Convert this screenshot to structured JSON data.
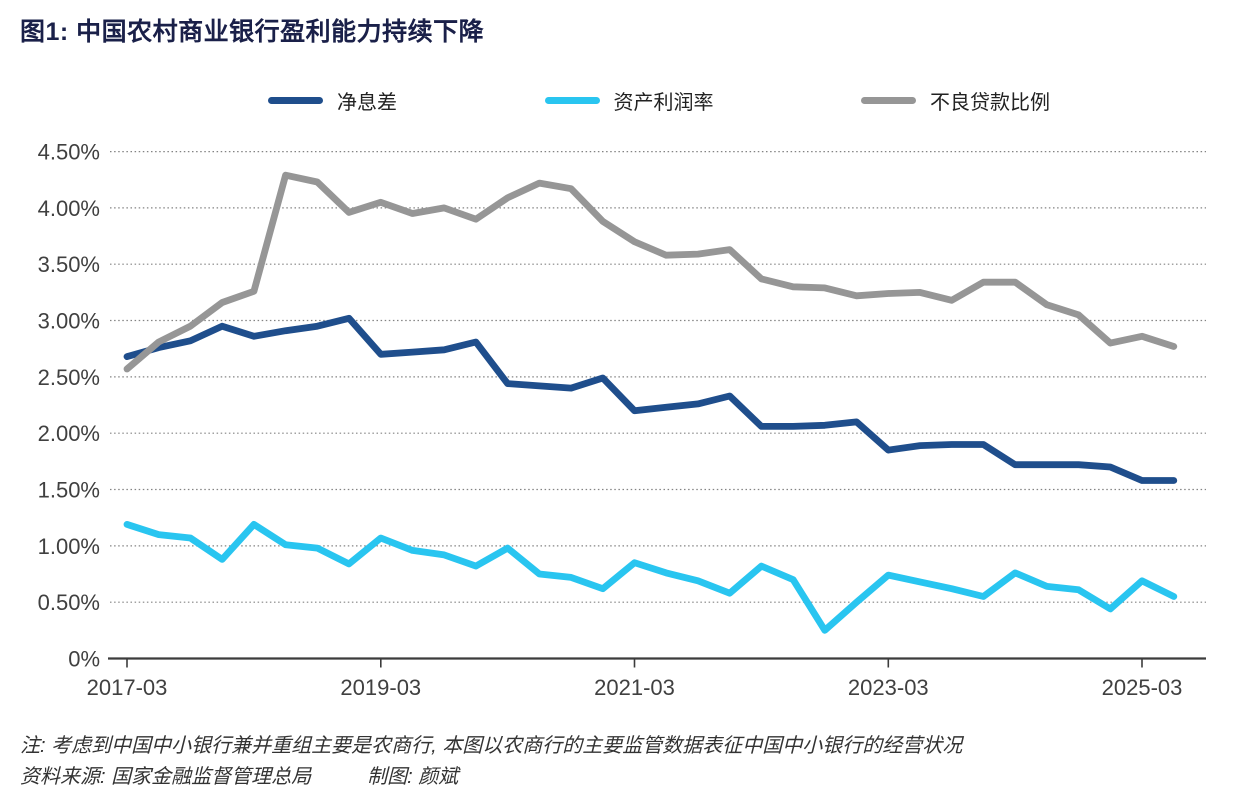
{
  "title": "图1: 中国农村商业银行盈利能力持续下降",
  "colors": {
    "net_interest_margin": "#1F4E8C",
    "roa": "#29C5F0",
    "npl_ratio": "#969696",
    "title_text": "#1A2049",
    "axis_text": "#404040",
    "axis_line": "#3C3C3C",
    "gridline": "#838383"
  },
  "legend": {
    "items": [
      {
        "label": "净息差"
      },
      {
        "label": "资产利润率"
      },
      {
        "label": "不良贷款比例"
      }
    ]
  },
  "chart_data": {
    "type": "line",
    "title": "图1: 中国农村商业银行盈利能力持续下降",
    "x_unit": "quarter",
    "grid": "horizontal-dotted",
    "legend_position": "top",
    "ylim": [
      0,
      4.5
    ],
    "draw_order": [
      0,
      2,
      1
    ],
    "categories": [
      "2017-03",
      "2017-06",
      "2017-09",
      "2017-12",
      "2018-03",
      "2018-06",
      "2018-09",
      "2018-12",
      "2019-03",
      "2019-06",
      "2019-09",
      "2019-12",
      "2020-03",
      "2020-06",
      "2020-09",
      "2020-12",
      "2021-03",
      "2021-06",
      "2021-09",
      "2021-12",
      "2022-03",
      "2022-06",
      "2022-09",
      "2022-12",
      "2023-03",
      "2023-06",
      "2023-09",
      "2023-12",
      "2024-03",
      "2024-06",
      "2024-09",
      "2024-12",
      "2025-03",
      "2025-06"
    ],
    "x_ticks": [
      {
        "index": 0,
        "label": "2017-03"
      },
      {
        "index": 8,
        "label": "2019-03"
      },
      {
        "index": 16,
        "label": "2021-03"
      },
      {
        "index": 24,
        "label": "2023-03"
      },
      {
        "index": 32,
        "label": "2025-03"
      }
    ],
    "y_ticks": [
      {
        "value": 4.5,
        "label": "4.50%"
      },
      {
        "value": 4.0,
        "label": "4.00%"
      },
      {
        "value": 3.5,
        "label": "3.50%"
      },
      {
        "value": 3.0,
        "label": "3.00%"
      },
      {
        "value": 2.5,
        "label": "2.50%"
      },
      {
        "value": 2.0,
        "label": "2.00%"
      },
      {
        "value": 1.5,
        "label": "1.50%"
      },
      {
        "value": 1.0,
        "label": "1.00%"
      },
      {
        "value": 0.5,
        "label": "0.50%"
      },
      {
        "value": 0.0,
        "label": "0%"
      }
    ],
    "series": [
      {
        "name": "净息差",
        "color": "#1F4E8C",
        "values": [
          2.68,
          2.76,
          2.82,
          2.95,
          2.86,
          2.91,
          2.95,
          3.02,
          2.7,
          2.72,
          2.74,
          2.81,
          2.44,
          2.42,
          2.4,
          2.49,
          2.2,
          2.23,
          2.26,
          2.33,
          2.06,
          2.06,
          2.07,
          2.1,
          1.85,
          1.89,
          1.9,
          1.9,
          1.72,
          1.72,
          1.72,
          1.7,
          1.58,
          1.58
        ]
      },
      {
        "name": "资产利润率",
        "color": "#29C5F0",
        "values": [
          1.19,
          1.1,
          1.07,
          0.88,
          1.19,
          1.01,
          0.98,
          0.84,
          1.07,
          0.96,
          0.92,
          0.82,
          0.98,
          0.75,
          0.72,
          0.62,
          0.85,
          0.76,
          0.69,
          0.58,
          0.82,
          0.7,
          0.25,
          0.5,
          0.74,
          0.68,
          0.62,
          0.55,
          0.76,
          0.64,
          0.61,
          0.44,
          0.69,
          0.55
        ]
      },
      {
        "name": "不良贷款比例",
        "color": "#969696",
        "values": [
          2.57,
          2.81,
          2.95,
          3.16,
          3.26,
          4.29,
          4.23,
          3.96,
          4.05,
          3.95,
          4.0,
          3.9,
          4.09,
          4.22,
          4.17,
          3.88,
          3.7,
          3.58,
          3.59,
          3.63,
          3.37,
          3.3,
          3.29,
          3.22,
          3.24,
          3.25,
          3.18,
          3.34,
          3.34,
          3.14,
          3.05,
          2.8,
          2.86,
          2.77
        ]
      }
    ]
  },
  "notes": {
    "line1": "注: 考虑到中国中小银行兼并重组主要是农商行, 本图以农商行的主要监管数据表征中国中小银行的经营状况",
    "source": "资料来源: 国家金融监督管理总局",
    "credit": "制图: 颜斌"
  }
}
